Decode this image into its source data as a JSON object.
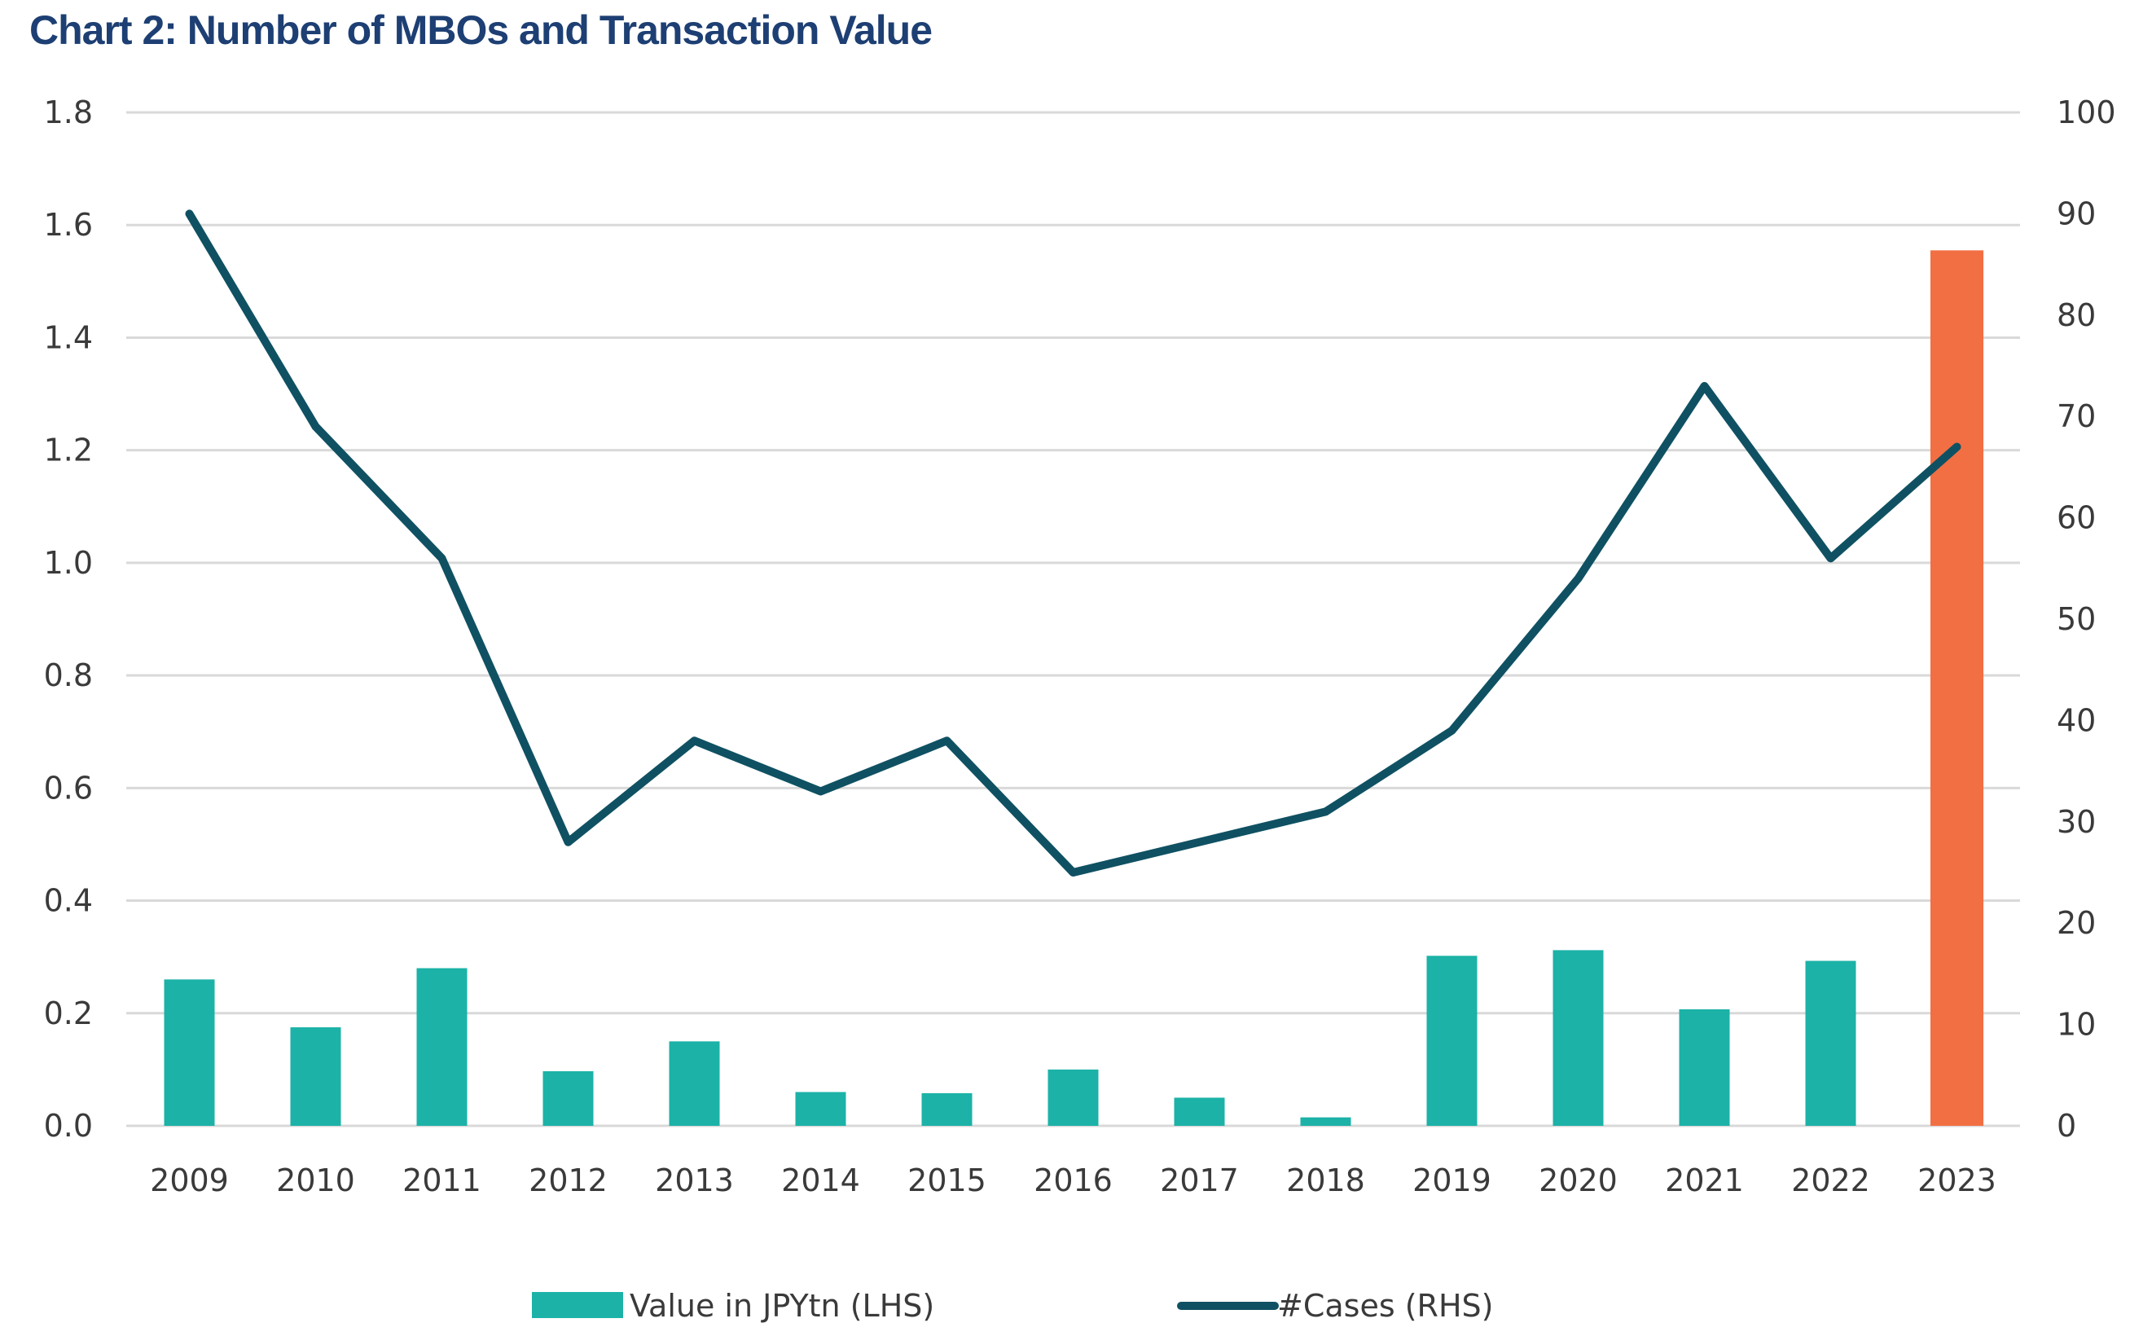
{
  "title": "Chart 2: Number of MBOs and Transaction Value",
  "colors": {
    "value_bars": "#1cb2a7",
    "highlight_bar": "#f26f43",
    "cases_line": "#0f5162",
    "grid": "#d9d9d9",
    "title": "#1d3f73"
  },
  "chart_data": {
    "type": "bar+line",
    "title": "Chart 2: Number of MBOs and Transaction Value",
    "categories": [
      "2009",
      "2010",
      "2011",
      "2012",
      "2013",
      "2014",
      "2015",
      "2016",
      "2017",
      "2018",
      "2019",
      "2020",
      "2021",
      "2022",
      "2023"
    ],
    "series": [
      {
        "name": "Value in JPYtn (LHS)",
        "type": "bar",
        "axis": "left",
        "values": [
          0.26,
          0.175,
          0.28,
          0.097,
          0.15,
          0.06,
          0.058,
          0.1,
          0.05,
          0.015,
          0.302,
          0.312,
          0.207,
          0.293,
          1.555
        ],
        "highlight_index": 14
      },
      {
        "name": "#Cases (RHS)",
        "type": "line",
        "axis": "right",
        "values": [
          90,
          69,
          56,
          28,
          38,
          33,
          38,
          25,
          28,
          31,
          39,
          54,
          73,
          56,
          67
        ]
      }
    ],
    "y_left": {
      "min": 0,
      "max": 1.8,
      "ticks": [
        "0.0",
        "0.2",
        "0.4",
        "0.6",
        "0.8",
        "1.0",
        "1.2",
        "1.4",
        "1.6",
        "1.8"
      ]
    },
    "y_right": {
      "min": 0,
      "max": 100,
      "ticks": [
        "0",
        "10",
        "20",
        "30",
        "40",
        "50",
        "60",
        "70",
        "80",
        "90",
        "100"
      ]
    },
    "grid": true,
    "legend_position": "bottom"
  }
}
